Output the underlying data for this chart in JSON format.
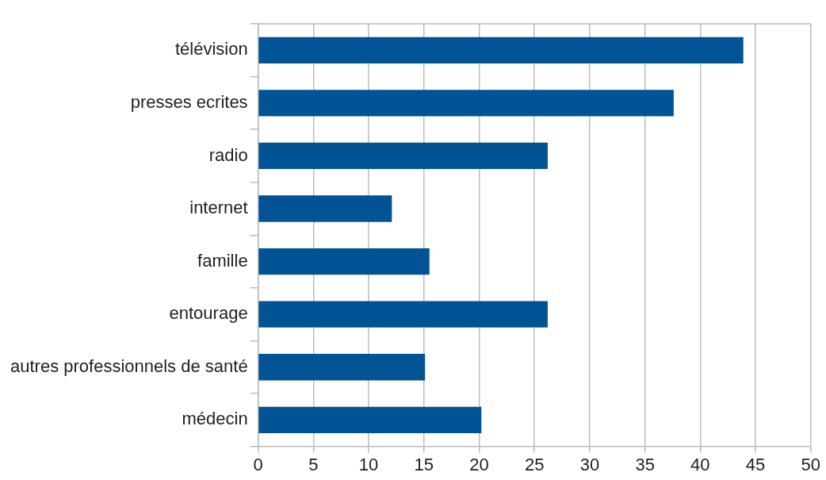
{
  "chart_data": {
    "type": "bar",
    "orientation": "horizontal",
    "categories": [
      "télévision",
      "presses ecrites",
      "radio",
      "internet",
      "famille",
      "entourage",
      "autres professionnels de santé",
      "médecin"
    ],
    "values": [
      43.9,
      37.6,
      26.2,
      12.1,
      15.5,
      26.2,
      15.1,
      20.2
    ],
    "color": "#005495",
    "xlim": [
      0,
      50
    ],
    "xticks": [
      0,
      5,
      10,
      15,
      20,
      25,
      30,
      35,
      40,
      45,
      50
    ],
    "grid": "x",
    "legend": false
  }
}
